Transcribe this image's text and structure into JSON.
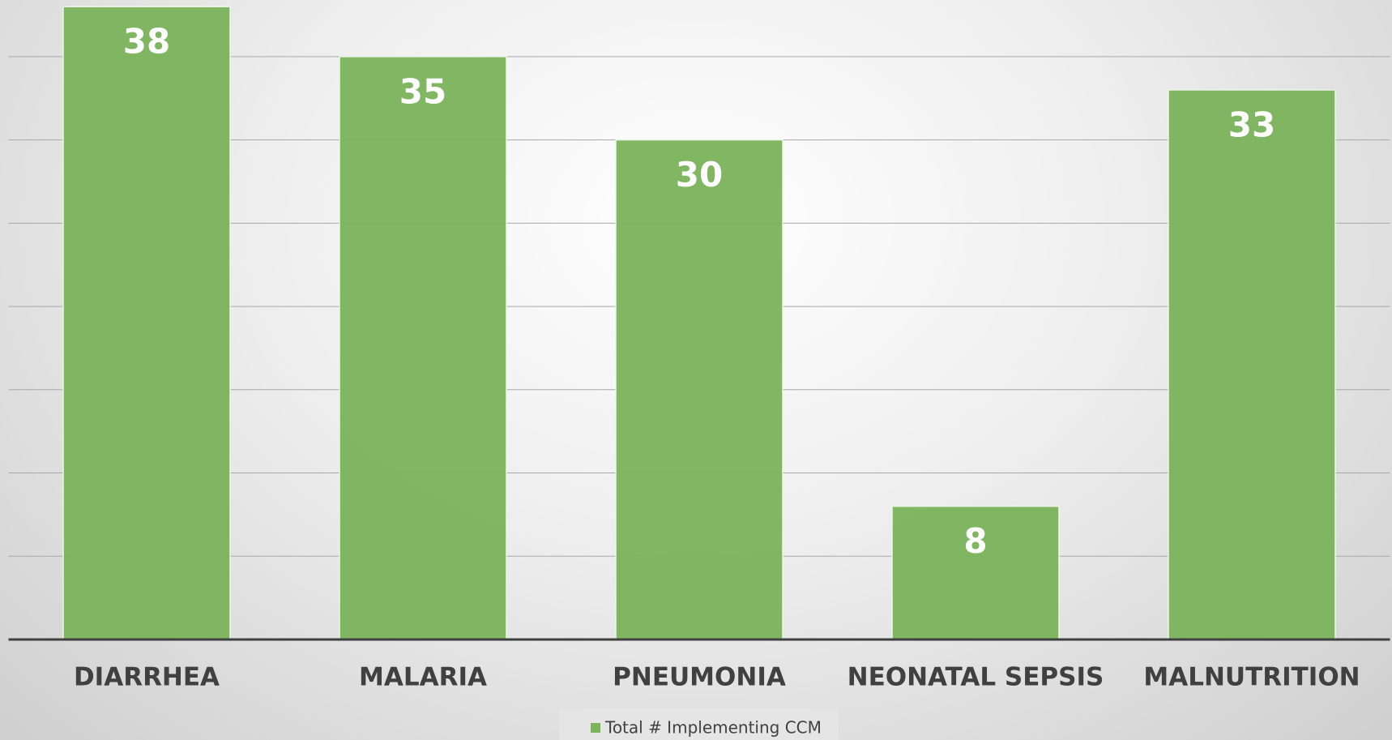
{
  "chart_data": {
    "type": "bar",
    "categories": [
      "DIARRHEA",
      "MALARIA",
      "PNEUMONIA",
      "NEONATAL SEPSIS",
      "MALNUTRITION"
    ],
    "series": [
      {
        "name": "Total # Implementing CCM",
        "color": "#7ab35a",
        "values": [
          38,
          35,
          30,
          8,
          33
        ]
      }
    ],
    "ylim": [
      0,
      38.4
    ],
    "yticks": [
      0,
      5,
      10,
      15,
      20,
      25,
      30,
      35
    ],
    "grid": true,
    "legend": "bottom"
  }
}
